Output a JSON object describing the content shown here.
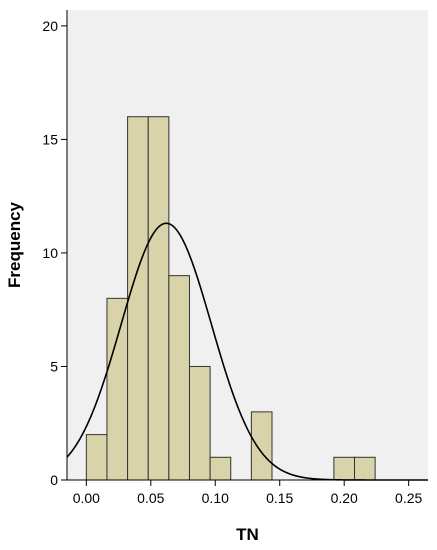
{
  "chart_data": {
    "type": "bar",
    "subtype": "histogram",
    "xlabel": "TN",
    "ylabel": "Frequency",
    "xlim": [
      -0.015,
      0.265
    ],
    "ylim": [
      0,
      20.7
    ],
    "x_ticks": [
      0.0,
      0.05,
      0.1,
      0.15,
      0.2,
      0.25
    ],
    "x_tick_labels": [
      "0.00",
      "0.05",
      "0.10",
      "0.15",
      "0.20",
      "0.25"
    ],
    "y_ticks": [
      0,
      5,
      10,
      15,
      20
    ],
    "y_tick_labels": [
      "0",
      "5",
      "10",
      "15",
      "20"
    ],
    "bin_width": 0.016,
    "bins": [
      {
        "x0": 0.0,
        "x1": 0.016,
        "count": 2
      },
      {
        "x0": 0.016,
        "x1": 0.032,
        "count": 8
      },
      {
        "x0": 0.032,
        "x1": 0.048,
        "count": 16
      },
      {
        "x0": 0.048,
        "x1": 0.064,
        "count": 16
      },
      {
        "x0": 0.064,
        "x1": 0.08,
        "count": 9
      },
      {
        "x0": 0.08,
        "x1": 0.096,
        "count": 5
      },
      {
        "x0": 0.096,
        "x1": 0.112,
        "count": 1
      },
      {
        "x0": 0.112,
        "x1": 0.128,
        "count": 0
      },
      {
        "x0": 0.128,
        "x1": 0.144,
        "count": 3
      },
      {
        "x0": 0.144,
        "x1": 0.16,
        "count": 0
      },
      {
        "x0": 0.16,
        "x1": 0.176,
        "count": 0
      },
      {
        "x0": 0.176,
        "x1": 0.192,
        "count": 0
      },
      {
        "x0": 0.192,
        "x1": 0.208,
        "count": 1
      },
      {
        "x0": 0.208,
        "x1": 0.224,
        "count": 1
      }
    ],
    "normal_curve": {
      "mean": 0.062,
      "sd": 0.035,
      "n": 62
    },
    "grid": false,
    "colors": {
      "bar_fill": "#d8d3a8",
      "bar_stroke": "#333333",
      "plot_bg": "#f0f0f0",
      "curve": "#000000"
    }
  }
}
